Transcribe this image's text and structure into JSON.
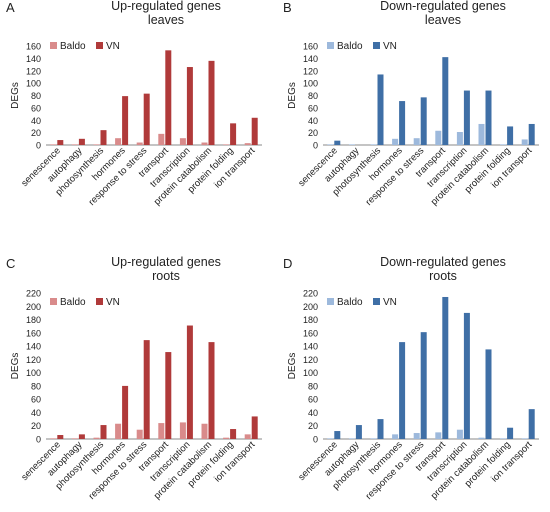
{
  "colors": {
    "baldo_red": "#d98b8b",
    "vn_red": "#b03a3a",
    "baldo_blue": "#9db9dc",
    "vn_blue": "#3f6fa6",
    "axis": "#888888"
  },
  "chart_data": [
    {
      "panel": "A",
      "type": "bar",
      "title": "Up-regulated genes",
      "subtitle": "leaves",
      "ylabel": "DEGs",
      "ylim": [
        0,
        160
      ],
      "yticks": [
        "0",
        "20",
        "40",
        "60",
        "80",
        "100",
        "120",
        "140",
        "160"
      ],
      "categories": [
        "senescence",
        "autophagy",
        "photosynthesis",
        "hormones",
        "response to stress",
        "transport",
        "transcription",
        "protein catabolism",
        "protein folding",
        "ion transport"
      ],
      "series": [
        {
          "name": "Baldo",
          "values": [
            1,
            1,
            1,
            11,
            4,
            18,
            11,
            4,
            1,
            3
          ]
        },
        {
          "name": "VN",
          "values": [
            8,
            10,
            24,
            79,
            83,
            153,
            126,
            136,
            35,
            44
          ]
        }
      ],
      "legend": "top-left",
      "palette": "red"
    },
    {
      "panel": "B",
      "type": "bar",
      "title": "Down-regulated genes",
      "subtitle": "leaves",
      "ylabel": "DEGs",
      "ylim": [
        0,
        160
      ],
      "yticks": [
        "0",
        "20",
        "40",
        "60",
        "80",
        "100",
        "120",
        "140",
        "160"
      ],
      "categories": [
        "senescence",
        "autophagy",
        "photosynthesis",
        "hormones",
        "response to stress",
        "transport",
        "transcription",
        "protein catabolism",
        "protein folding",
        "ion transport"
      ],
      "series": [
        {
          "name": "Baldo",
          "values": [
            1,
            1,
            1,
            10,
            11,
            23,
            21,
            34,
            1,
            9
          ]
        },
        {
          "name": "VN",
          "values": [
            7,
            0,
            114,
            71,
            77,
            142,
            88,
            88,
            30,
            34
          ]
        }
      ],
      "legend": "top-left",
      "palette": "blue"
    },
    {
      "panel": "C",
      "type": "bar",
      "title": "Up-regulated genes",
      "subtitle": "roots",
      "ylabel": "DEGs",
      "ylim": [
        0,
        220
      ],
      "yticks": [
        "0",
        "20",
        "40",
        "60",
        "80",
        "100",
        "120",
        "140",
        "160",
        "180",
        "200",
        "220"
      ],
      "categories": [
        "senescence",
        "autophagy",
        "photosynthesis",
        "hormones",
        "response to stress",
        "transport",
        "transcription",
        "protein catabolism",
        "protein folding",
        "ion transport"
      ],
      "series": [
        {
          "name": "Baldo",
          "values": [
            1,
            1,
            2,
            23,
            14,
            24,
            25,
            23,
            2,
            7
          ]
        },
        {
          "name": "VN",
          "values": [
            6,
            7,
            21,
            80,
            149,
            131,
            171,
            146,
            15,
            34
          ]
        }
      ],
      "legend": "top-left",
      "palette": "red"
    },
    {
      "panel": "D",
      "type": "bar",
      "title": "Down-regulated genes",
      "subtitle": "roots",
      "ylabel": "DEGs",
      "ylim": [
        0,
        220
      ],
      "yticks": [
        "0",
        "20",
        "40",
        "60",
        "80",
        "100",
        "120",
        "140",
        "160",
        "180",
        "200",
        "220"
      ],
      "categories": [
        "senescence",
        "autophagy",
        "photosynthesis",
        "hormones",
        "response to stress",
        "transport",
        "transcription",
        "protein catabolism",
        "protein folding",
        "ion transport"
      ],
      "series": [
        {
          "name": "Baldo",
          "values": [
            1,
            1,
            1,
            7,
            9,
            10,
            14,
            2,
            1,
            1
          ]
        },
        {
          "name": "VN",
          "values": [
            12,
            21,
            30,
            146,
            161,
            214,
            190,
            135,
            17,
            45
          ]
        }
      ],
      "legend": "top-left",
      "palette": "blue"
    }
  ]
}
